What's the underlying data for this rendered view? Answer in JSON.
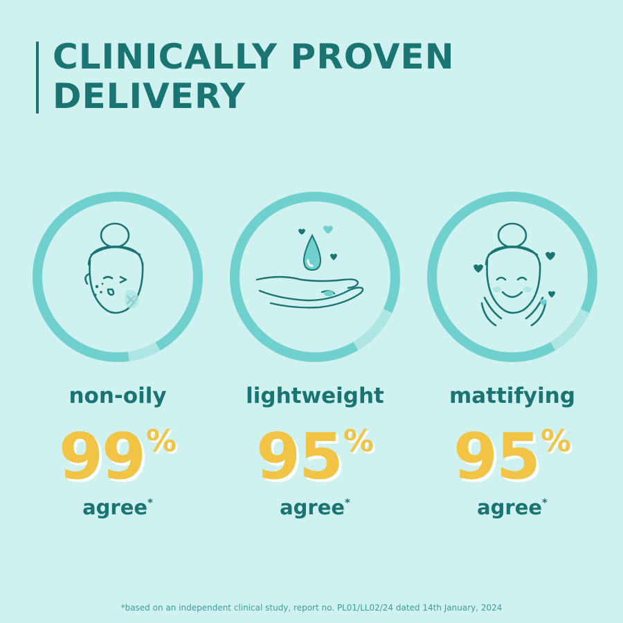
{
  "title": {
    "line1": "CLINICALLY PROVEN",
    "line2": "DELIVERY"
  },
  "colors": {
    "background": "#cff2f1",
    "heading": "#1a7472",
    "ring": "#6fd0cd",
    "ring_gap": "#aee6e3",
    "percent": "#f2c445",
    "percent_shadow": "#ffffff"
  },
  "stats": [
    {
      "icon": "face-acne-icon",
      "label": "non-oily",
      "value": "99",
      "unit": "%",
      "caption": "agree",
      "mark": "*"
    },
    {
      "icon": "hand-droplet-icon",
      "label": "lightweight",
      "value": "95",
      "unit": "%",
      "caption": "agree",
      "mark": "*"
    },
    {
      "icon": "face-happy-icon",
      "label": "mattifying",
      "value": "95",
      "unit": "%",
      "caption": "agree",
      "mark": "*"
    }
  ],
  "footnote": "*based on an independent clinical study, report no. PL01/LL02/24 dated 14th January, 2024"
}
